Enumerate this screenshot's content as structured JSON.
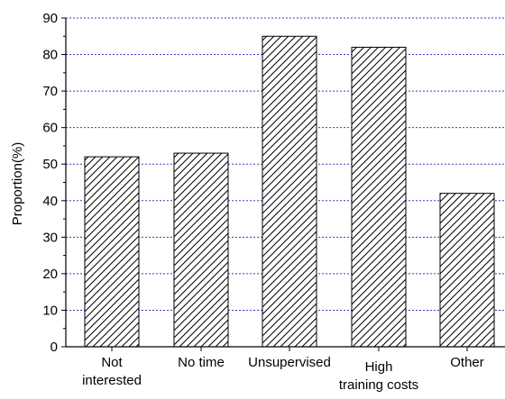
{
  "chart_data": {
    "type": "bar",
    "categories": [
      "Not interested",
      "No time",
      "Unsupervised",
      "High training costs",
      "Other"
    ],
    "category_label_lines": [
      [
        "Not",
        "interested"
      ],
      [
        "No time"
      ],
      [
        "Unsupervised"
      ],
      [
        "High",
        "training costs"
      ],
      [
        "Other"
      ]
    ],
    "values": [
      52,
      53,
      85,
      82,
      42
    ],
    "ylabel": "Proportion(%)",
    "xlabel": "",
    "ylim": [
      0,
      90
    ],
    "yticks": [
      0,
      10,
      20,
      30,
      40,
      50,
      60,
      70,
      80,
      90
    ],
    "grid": "horizontal dashed",
    "bar_pattern": "diagonal hatch",
    "colors": {
      "grid": "#3a3acc",
      "bar_fill": "#ffffff",
      "bar_stroke": "#000000",
      "axis": "#000000"
    }
  }
}
